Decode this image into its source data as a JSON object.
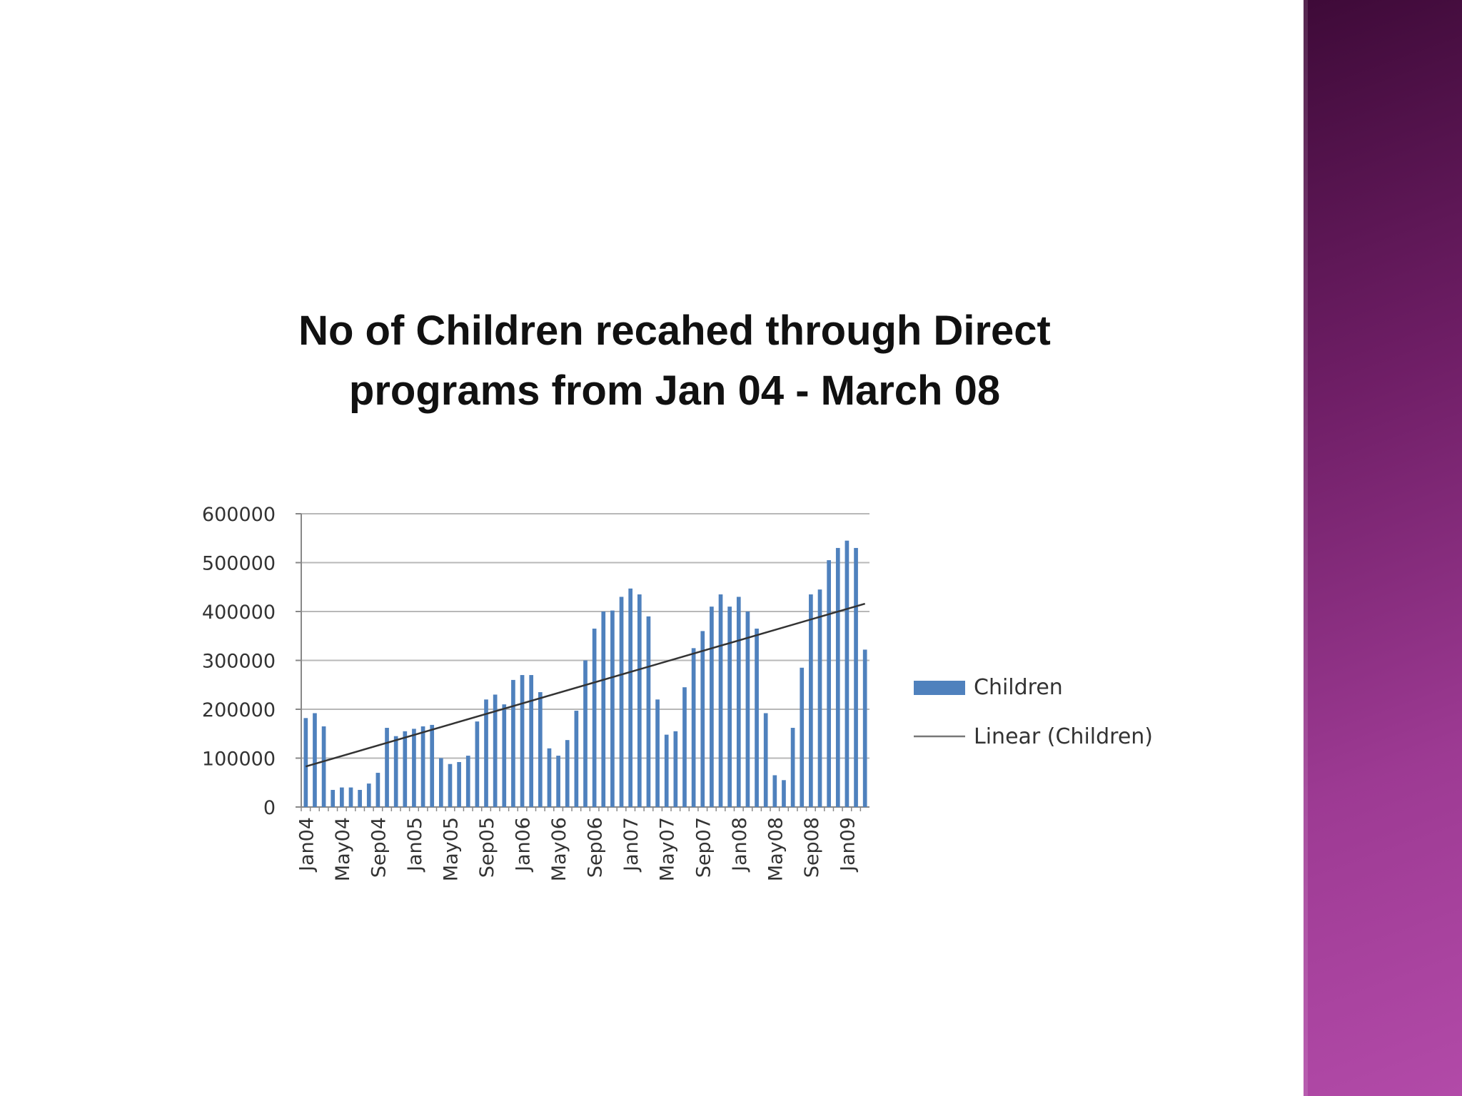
{
  "slide": {
    "accent_band_color": "#8e2f85"
  },
  "chart_data": {
    "type": "bar",
    "title": "No of Children recahed through Direct programs from Jan 04 - March 08",
    "xlabel": "",
    "ylabel": "",
    "ylim": [
      0,
      600000
    ],
    "y_ticks": [
      "0",
      "100000",
      "200000",
      "300000",
      "400000",
      "500000",
      "600000"
    ],
    "x_tick_labels": [
      "Jan04",
      "May04",
      "Sep04",
      "Jan05",
      "May05",
      "Sep05",
      "Jan06",
      "May06",
      "Sep06",
      "Jan07",
      "May07",
      "Sep07",
      "Jan08",
      "May08",
      "Sep08",
      "Jan09"
    ],
    "x_tick_every": 4,
    "grid": true,
    "legend_position": "right",
    "bar_color": "#4f81bd",
    "trend_color": "#333333",
    "series": [
      {
        "name": "Children",
        "type": "bar",
        "values": [
          182000,
          192000,
          165000,
          35000,
          40000,
          40000,
          35000,
          48000,
          70000,
          162000,
          145000,
          155000,
          160000,
          165000,
          168000,
          100000,
          88000,
          92000,
          105000,
          175000,
          220000,
          230000,
          210000,
          260000,
          270000,
          270000,
          235000,
          120000,
          105000,
          137000,
          197000,
          300000,
          365000,
          400000,
          402000,
          430000,
          447000,
          435000,
          390000,
          220000,
          148000,
          155000,
          245000,
          325000,
          360000,
          410000,
          435000,
          410000,
          430000,
          400000,
          365000,
          192000,
          65000,
          55000,
          162000,
          285000,
          435000,
          445000,
          505000,
          530000,
          545000,
          530000,
          322000
        ]
      },
      {
        "name": "Linear (Children)",
        "type": "trendline",
        "values": [
          83000,
          416000
        ]
      }
    ]
  }
}
